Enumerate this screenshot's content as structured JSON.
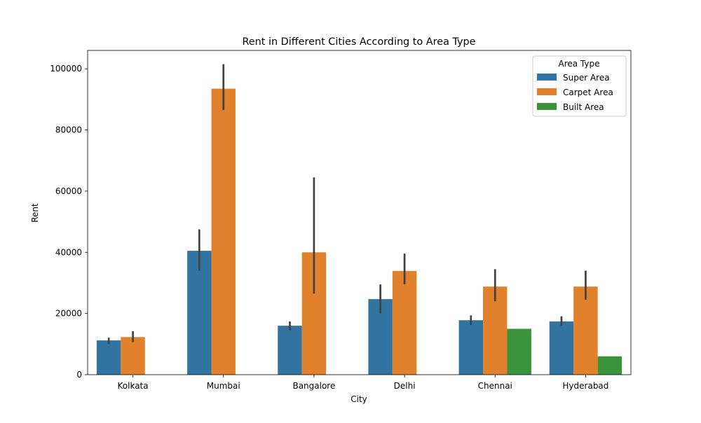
{
  "chart_data": {
    "type": "bar",
    "title": "Rent in Different Cities According to Area Type",
    "xlabel": "City",
    "ylabel": "Rent",
    "categories": [
      "Kolkata",
      "Mumbai",
      "Bangalore",
      "Delhi",
      "Chennai",
      "Hyderabad"
    ],
    "ylim": [
      0,
      106000
    ],
    "yticks": [
      0,
      20000,
      40000,
      60000,
      80000,
      100000
    ],
    "grid": false,
    "legend": {
      "title": "Area Type",
      "placement": "top-right"
    },
    "series": [
      {
        "name": "Super Area",
        "color": "#3274a1",
        "values": [
          11200,
          40500,
          16000,
          24700,
          17800,
          17400
        ],
        "error_low": [
          10000,
          34000,
          14500,
          20000,
          16200,
          15900
        ],
        "error_high": [
          12100,
          47500,
          17400,
          29500,
          19400,
          19100
        ]
      },
      {
        "name": "Carpet Area",
        "color": "#e1812c",
        "values": [
          12300,
          93500,
          40000,
          33900,
          28800,
          28800
        ],
        "error_low": [
          10700,
          86500,
          26500,
          29500,
          24000,
          24500
        ],
        "error_high": [
          14200,
          101500,
          64500,
          39600,
          34500,
          34000
        ]
      },
      {
        "name": "Built Area",
        "color": "#3a923a",
        "values": [
          null,
          null,
          null,
          null,
          15000,
          6000
        ],
        "error_low": [
          null,
          null,
          null,
          null,
          null,
          null
        ],
        "error_high": [
          null,
          null,
          null,
          null,
          null,
          null
        ]
      }
    ]
  }
}
